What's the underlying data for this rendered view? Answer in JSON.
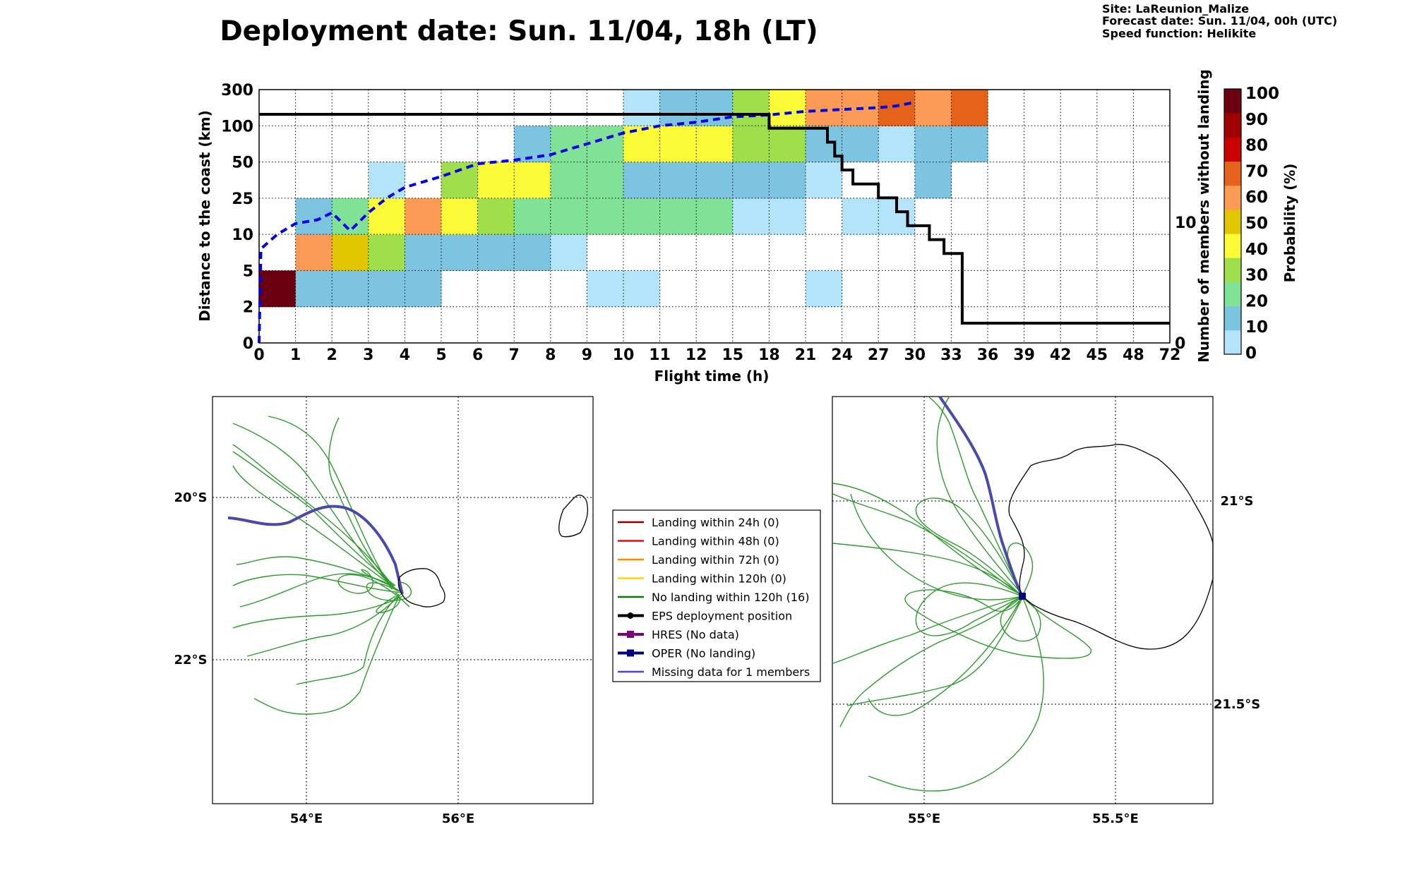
{
  "title": "Deployment date: Sun. 11/04, 18h (LT)",
  "info": {
    "site": "Site: LaReunion_Malize",
    "forecast": "Forecast date: Sun. 11/04, 00h (UTC)",
    "speed": "Speed function: Helikite"
  },
  "chart_data": [
    {
      "type": "heatmap",
      "xlabel": "Flight time (h)",
      "ylabel": "Distance to the coast (km)",
      "ylabel_right": "Number of members without landing",
      "colorbar_label": "Probability (%)",
      "x_ticks": [
        "0",
        "1",
        "2",
        "3",
        "4",
        "5",
        "6",
        "7",
        "8",
        "9",
        "10",
        "11",
        "12",
        "15",
        "18",
        "21",
        "24",
        "27",
        "30",
        "33",
        "36",
        "39",
        "42",
        "45",
        "48",
        "72"
      ],
      "y_ticks": [
        "0",
        "2",
        "5",
        "10",
        "25",
        "50",
        "100",
        "300"
      ],
      "y_right_ticks": [
        "0",
        "10"
      ],
      "y_right_range": [
        0,
        16
      ],
      "grid": true,
      "colorbar": {
        "ticks": [
          "0",
          "10",
          "20",
          "30",
          "40",
          "50",
          "60",
          "70",
          "80",
          "90",
          "100"
        ],
        "colors": [
          "#b4e4f9",
          "#7cc4e0",
          "#80e296",
          "#9edf4b",
          "#fbfb38",
          "#e2c600",
          "#fb9b55",
          "#e5621a",
          "#cb0000",
          "#9f0000",
          "#6b0011"
        ]
      },
      "cells": [
        {
          "x": 0,
          "y": 1,
          "p": 100
        },
        {
          "x": 1,
          "y": 1,
          "p": 10
        },
        {
          "x": 2,
          "y": 1,
          "p": 10
        },
        {
          "x": 3,
          "y": 1,
          "p": 10
        },
        {
          "x": 4,
          "y": 1,
          "p": 10
        },
        {
          "x": 9,
          "y": 1,
          "p": 5
        },
        {
          "x": 10,
          "y": 1,
          "p": 5
        },
        {
          "x": 15,
          "y": 1,
          "p": 5
        },
        {
          "x": 1,
          "y": 2,
          "p": 60
        },
        {
          "x": 2,
          "y": 2,
          "p": 50
        },
        {
          "x": 3,
          "y": 2,
          "p": 30
        },
        {
          "x": 4,
          "y": 2,
          "p": 10
        },
        {
          "x": 5,
          "y": 2,
          "p": 10
        },
        {
          "x": 6,
          "y": 2,
          "p": 10
        },
        {
          "x": 7,
          "y": 2,
          "p": 10
        },
        {
          "x": 8,
          "y": 2,
          "p": 5
        },
        {
          "x": 1,
          "y": 3,
          "p": 10
        },
        {
          "x": 2,
          "y": 3,
          "p": 20
        },
        {
          "x": 3,
          "y": 3,
          "p": 40
        },
        {
          "x": 4,
          "y": 3,
          "p": 60
        },
        {
          "x": 5,
          "y": 3,
          "p": 40
        },
        {
          "x": 6,
          "y": 3,
          "p": 30
        },
        {
          "x": 7,
          "y": 3,
          "p": 20
        },
        {
          "x": 8,
          "y": 3,
          "p": 20
        },
        {
          "x": 9,
          "y": 3,
          "p": 20
        },
        {
          "x": 10,
          "y": 3,
          "p": 20
        },
        {
          "x": 11,
          "y": 3,
          "p": 20
        },
        {
          "x": 12,
          "y": 3,
          "p": 20
        },
        {
          "x": 13,
          "y": 3,
          "p": 5
        },
        {
          "x": 14,
          "y": 3,
          "p": 5
        },
        {
          "x": 16,
          "y": 3,
          "p": 5
        },
        {
          "x": 17,
          "y": 3,
          "p": 5
        },
        {
          "x": 3,
          "y": 4,
          "p": 5
        },
        {
          "x": 5,
          "y": 4,
          "p": 30
        },
        {
          "x": 6,
          "y": 4,
          "p": 40
        },
        {
          "x": 7,
          "y": 4,
          "p": 40
        },
        {
          "x": 8,
          "y": 4,
          "p": 20
        },
        {
          "x": 9,
          "y": 4,
          "p": 20
        },
        {
          "x": 10,
          "y": 4,
          "p": 10
        },
        {
          "x": 11,
          "y": 4,
          "p": 10
        },
        {
          "x": 12,
          "y": 4,
          "p": 10
        },
        {
          "x": 13,
          "y": 4,
          "p": 10
        },
        {
          "x": 14,
          "y": 4,
          "p": 10
        },
        {
          "x": 15,
          "y": 4,
          "p": 5
        },
        {
          "x": 18,
          "y": 4,
          "p": 10
        },
        {
          "x": 7,
          "y": 5,
          "p": 10
        },
        {
          "x": 8,
          "y": 5,
          "p": 20
        },
        {
          "x": 9,
          "y": 5,
          "p": 20
        },
        {
          "x": 10,
          "y": 5,
          "p": 40
        },
        {
          "x": 11,
          "y": 5,
          "p": 40
        },
        {
          "x": 12,
          "y": 5,
          "p": 40
        },
        {
          "x": 13,
          "y": 5,
          "p": 30
        },
        {
          "x": 14,
          "y": 5,
          "p": 30
        },
        {
          "x": 15,
          "y": 5,
          "p": 10
        },
        {
          "x": 16,
          "y": 5,
          "p": 10
        },
        {
          "x": 17,
          "y": 5,
          "p": 5
        },
        {
          "x": 18,
          "y": 5,
          "p": 10
        },
        {
          "x": 19,
          "y": 5,
          "p": 10
        },
        {
          "x": 10,
          "y": 6,
          "p": 5
        },
        {
          "x": 11,
          "y": 6,
          "p": 10
        },
        {
          "x": 12,
          "y": 6,
          "p": 10
        },
        {
          "x": 13,
          "y": 6,
          "p": 30
        },
        {
          "x": 14,
          "y": 6,
          "p": 40
        },
        {
          "x": 15,
          "y": 6,
          "p": 60
        },
        {
          "x": 16,
          "y": 6,
          "p": 60
        },
        {
          "x": 17,
          "y": 6,
          "p": 70
        },
        {
          "x": 18,
          "y": 6,
          "p": 60
        },
        {
          "x": 19,
          "y": 6,
          "p": 70
        }
      ],
      "series": [
        {
          "style": "blue dashed",
          "x": [
            0,
            0.05,
            0.5,
            1,
            1.6,
            2,
            2.5,
            3,
            3.5,
            4,
            5,
            6,
            7,
            8,
            9,
            10,
            11,
            12,
            13,
            14,
            15,
            16,
            17,
            17.5,
            18
          ],
          "y": [
            0,
            2.6,
            3.0,
            3.3,
            3.4,
            3.6,
            3.1,
            3.6,
            4.0,
            4.3,
            4.6,
            4.95,
            5.05,
            5.2,
            5.5,
            5.8,
            6.0,
            6.1,
            6.25,
            6.3,
            6.4,
            6.45,
            6.5,
            6.55,
            6.65
          ]
        },
        {
          "style": "black step",
          "x": [
            0,
            14,
            14,
            15.6,
            15.6,
            15.8,
            15.8,
            16,
            16,
            16.3,
            16.3,
            17,
            17,
            17.5,
            17.5,
            17.8,
            17.8,
            18.4,
            18.4,
            18.8,
            18.8,
            19.3,
            19.3,
            25
          ],
          "y": [
            16,
            16,
            15,
            15,
            14,
            14,
            13,
            13,
            12,
            12,
            11,
            11,
            10,
            10,
            9,
            9,
            8,
            8,
            7,
            7,
            6,
            6,
            1,
            1
          ]
        }
      ]
    }
  ],
  "legend": [
    {
      "label": "Landing within 24h (0)",
      "color": "#8b0000",
      "marker": "none"
    },
    {
      "label": "Landing within 48h (0)",
      "color": "#ff0000",
      "marker": "none"
    },
    {
      "label": "Landing within 72h (0)",
      "color": "#ff8c00",
      "marker": "none"
    },
    {
      "label": "Landing within 120h (0)",
      "color": "#ffd700",
      "marker": "none"
    },
    {
      "label": "No landing within 120h (16)",
      "color": "#008000",
      "marker": "none"
    },
    {
      "label": "EPS deployment position",
      "color": "#000000",
      "marker": "circle"
    },
    {
      "label": "HRES (No data)",
      "color": "#800080",
      "marker": "square"
    },
    {
      "label": "OPER (No landing)",
      "color": "#000080",
      "marker": "square"
    },
    {
      "label": "Missing data for 1 members",
      "color": "#4444ff",
      "marker": "none"
    }
  ],
  "maps": {
    "left": {
      "lat_labels": [
        "20°S",
        "22°S"
      ],
      "lon_labels": [
        "54°E",
        "56°E"
      ]
    },
    "right": {
      "lat_labels": [
        "21°S",
        "21.5°S"
      ],
      "lon_labels": [
        "55°E",
        "55.5°E"
      ]
    }
  }
}
